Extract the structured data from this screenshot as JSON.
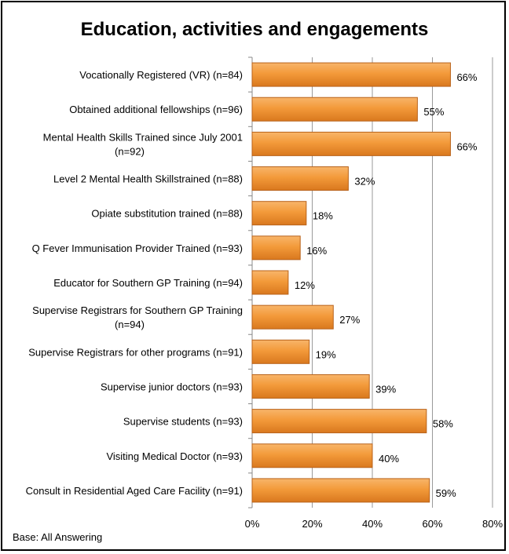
{
  "chart_data": {
    "type": "bar",
    "orientation": "horizontal",
    "title": "Education,  activities and engagements",
    "categories": [
      [
        "Vocationally Registered (VR)  (n=84)"
      ],
      [
        "Obtained additional fellowships (n=96)"
      ],
      [
        "Mental Health Skills Trained since July 2001",
        "(n=92)"
      ],
      [
        "Level 2 Mental Health Skillstrained (n=88)"
      ],
      [
        "Opiate substitution trained (n=88)"
      ],
      [
        "Q Fever Immunisation Provider Trained (n=93)"
      ],
      [
        "Educator for Southern GP Training (n=94)"
      ],
      [
        "Supervise Registrars for Southern GP Training",
        "(n=94)"
      ],
      [
        "Supervise Registrars for other programs (n=91)"
      ],
      [
        "Supervise junior doctors (n=93)"
      ],
      [
        "Supervise students (n=93)"
      ],
      [
        "Visiting Medical Doctor (n=93)"
      ],
      [
        "Consult in Residential Aged Care Facility (n=91)"
      ]
    ],
    "values": [
      66,
      55,
      66,
      32,
      18,
      16,
      12,
      27,
      19,
      39,
      58,
      40,
      59
    ],
    "value_labels": [
      "66%",
      "55%",
      "66%",
      "32%",
      "18%",
      "16%",
      "12%",
      "27%",
      "19%",
      "39%",
      "58%",
      "40%",
      "59%"
    ],
    "xlim": [
      0,
      80
    ],
    "xticks": [
      "0%",
      "20%",
      "40%",
      "60%",
      "80%"
    ],
    "grid": true,
    "bar_color": "#F39A3A",
    "bar_edge_color": "#B8621A"
  },
  "footnote": "Base: All Answering"
}
